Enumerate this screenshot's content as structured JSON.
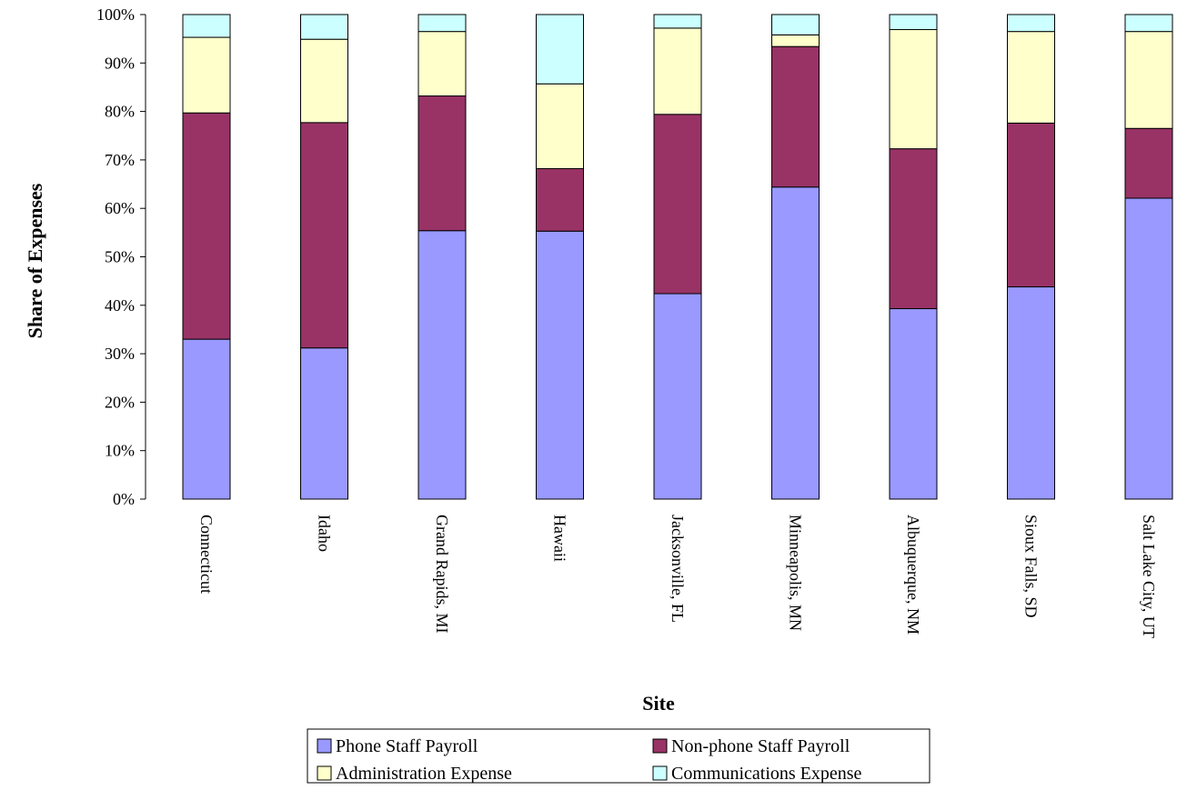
{
  "chart_data": {
    "type": "bar",
    "stacked": true,
    "percent": true,
    "title": "",
    "xlabel": "Site",
    "ylabel": "Share of Expenses",
    "ylim": [
      0,
      100
    ],
    "yticks": [
      "0%",
      "10%",
      "20%",
      "30%",
      "40%",
      "50%",
      "60%",
      "70%",
      "80%",
      "90%",
      "100%"
    ],
    "grid": false,
    "legend_position": "bottom",
    "categories": [
      "Connecticut",
      "Idaho",
      "Grand Rapids, MI",
      "Hawaii",
      "Jacksonville, FL",
      "Minneapolis, MN",
      "Albuquerque, NM",
      "Sioux Falls, SD",
      "Salt Lake City, UT"
    ],
    "series": [
      {
        "name": "Phone Staff Payroll",
        "color": "#9999ff",
        "values": [
          33.0,
          31.2,
          55.4,
          55.3,
          42.4,
          64.4,
          39.3,
          43.8,
          62.1
        ]
      },
      {
        "name": "Non-phone Staff Payroll",
        "color": "#993366",
        "values": [
          46.7,
          46.5,
          27.8,
          12.9,
          37.0,
          29.0,
          33.0,
          33.8,
          14.4
        ]
      },
      {
        "name": "Administration Expense",
        "color": "#ffffcc",
        "values": [
          15.6,
          17.2,
          13.3,
          17.5,
          17.8,
          2.4,
          24.6,
          18.9,
          20.0
        ]
      },
      {
        "name": "Communications Expense",
        "color": "#ccffff",
        "values": [
          4.7,
          5.1,
          3.5,
          14.3,
          2.8,
          4.2,
          3.1,
          3.5,
          3.5
        ]
      }
    ]
  }
}
